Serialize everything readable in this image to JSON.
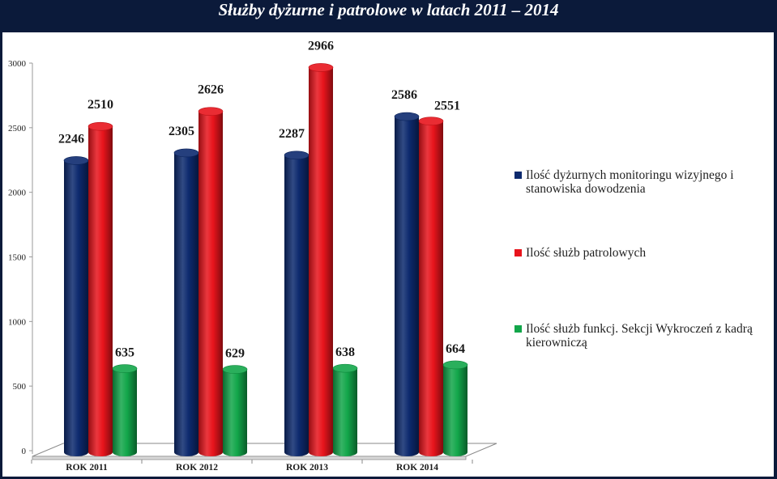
{
  "title": "Służby dyżurne i patrolowe w latach 2011 – 2014",
  "chart_data": {
    "type": "bar",
    "categories": [
      "ROK 2011",
      "ROK 2012",
      "ROK 2013",
      "ROK 2014"
    ],
    "series": [
      {
        "name": "Ilość dyżurnych monitoringu wizyjnego i stanowiska dowodzenia",
        "color": "#0d2a6e",
        "values": [
          2246,
          2305,
          2287,
          2586
        ]
      },
      {
        "name": "Ilość służb patrolowych",
        "color": "#e8141c",
        "values": [
          2510,
          2626,
          2966,
          2551
        ]
      },
      {
        "name": "Ilość służb funkcj. Sekcji Wykroczeń z kadrą kierowniczą",
        "color": "#12a64a",
        "values": [
          635,
          629,
          638,
          664
        ]
      }
    ],
    "yticks": [
      "0",
      "500",
      "1000",
      "1500",
      "2000",
      "2500",
      "3000"
    ],
    "ylim": [
      0,
      3000
    ],
    "grid": false,
    "legend": "right",
    "xlabel": "",
    "ylabel": ""
  }
}
